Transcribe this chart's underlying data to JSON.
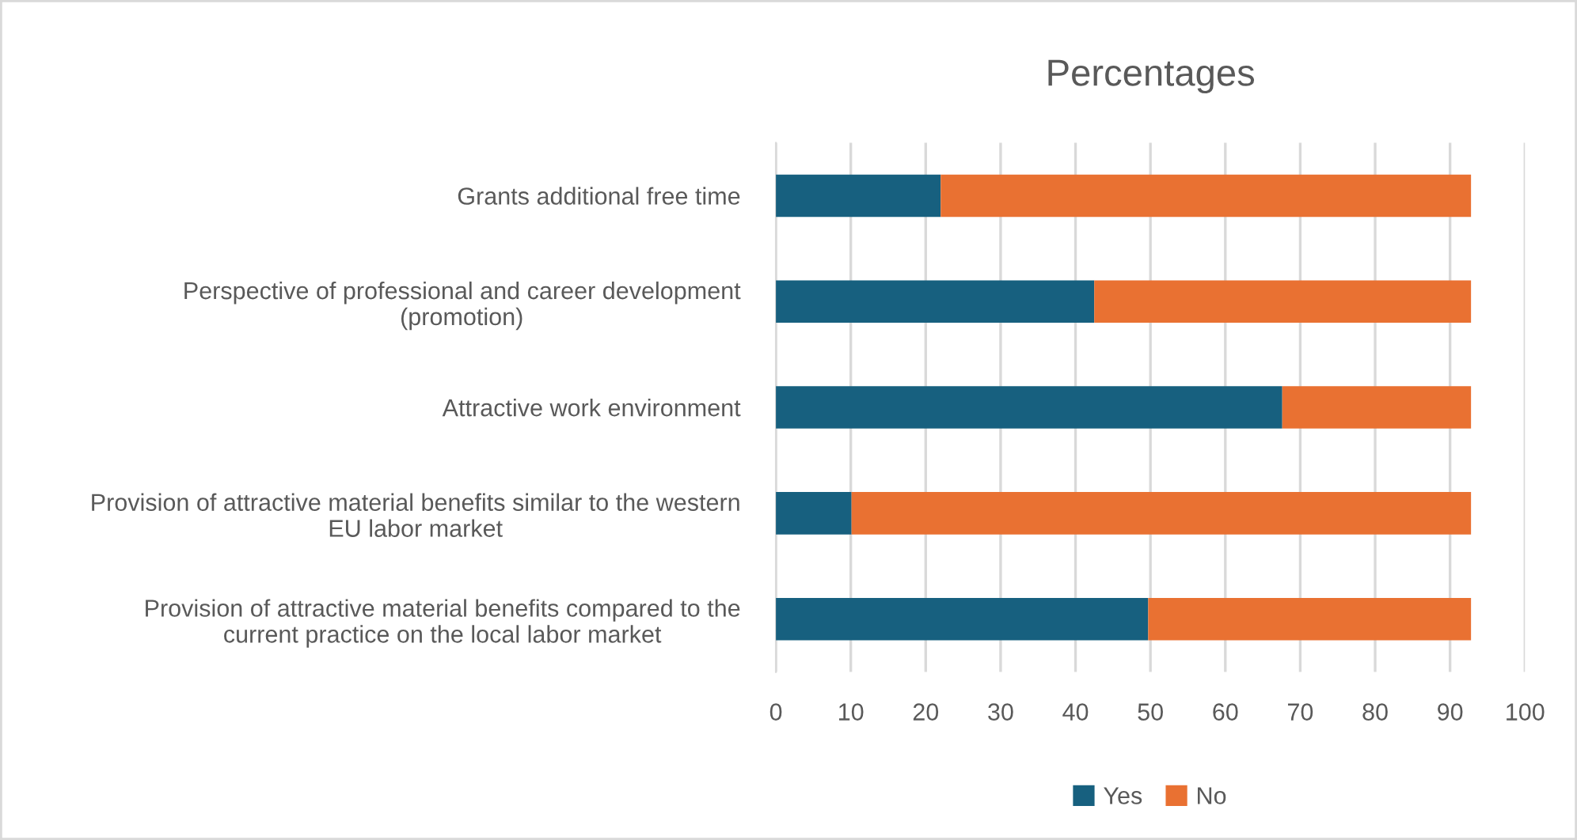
{
  "chart_data": {
    "type": "bar",
    "orientation": "horizontal",
    "stacked": true,
    "title": "Percentages",
    "categories": [
      "Grants additional free time",
      "Perspective of professional and career development\n(promotion)",
      "Attractive work environment",
      "Provision of attractive material benefits similar to the western\nEU labor market",
      "Provision of attractive material benefits compared to the\ncurrent practice on the local labor market"
    ],
    "series": [
      {
        "name": "Yes",
        "color": "#17607f",
        "values": [
          22,
          42.5,
          67.6,
          10.1,
          49.7
        ]
      },
      {
        "name": "No",
        "color": "#e97132",
        "values": [
          70.8,
          50.3,
          25.2,
          82.7,
          43.1
        ]
      }
    ],
    "xlim": [
      0,
      100
    ],
    "xticks": [
      0,
      10,
      20,
      30,
      40,
      50,
      60,
      70,
      80,
      90,
      100
    ],
    "grid": "x",
    "legend": "bottom"
  }
}
